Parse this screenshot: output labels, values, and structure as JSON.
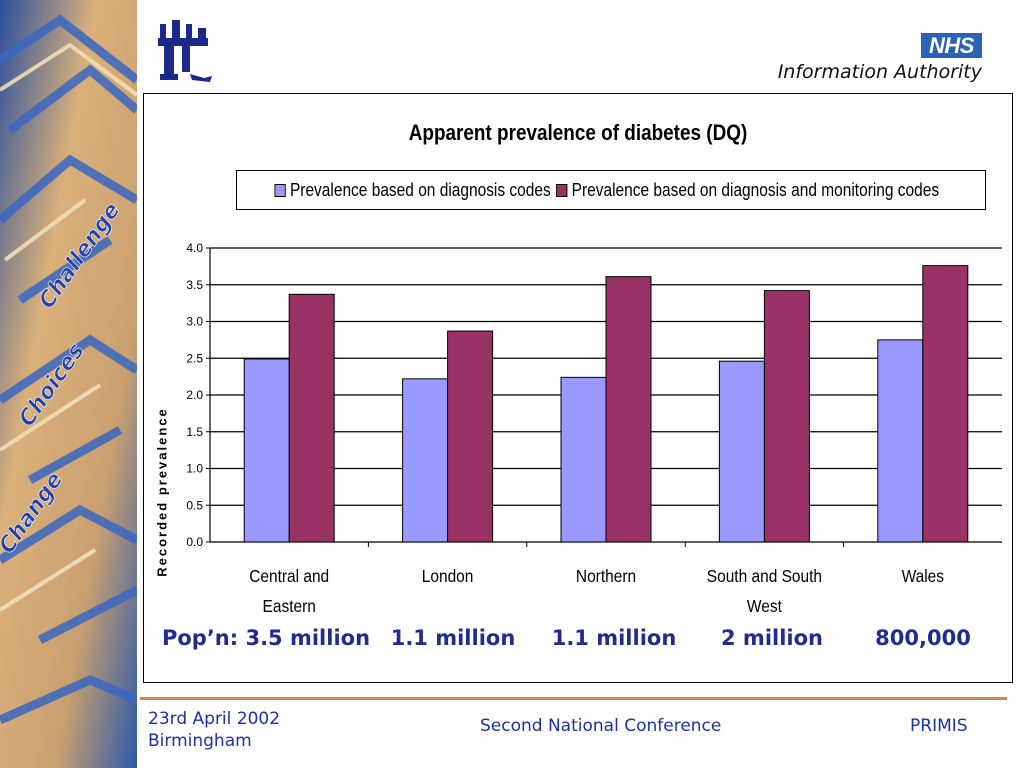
{
  "side_banner": {
    "words": [
      "Challenge",
      "Choices",
      "Change"
    ]
  },
  "header": {
    "nhs_badge": "NHS",
    "org_name": "Information Authority"
  },
  "chart_data": {
    "type": "bar",
    "title": "Apparent prevalence of diabetes (DQ)",
    "ylabel": "Recorded prevalence",
    "xlabel": "",
    "ylim": [
      0,
      4
    ],
    "yticks": [
      "0.0",
      "0.5",
      "1.0",
      "1.5",
      "2.0",
      "2.5",
      "3.0",
      "3.5",
      "4.0"
    ],
    "grid": true,
    "legend_position": "top",
    "categories": [
      [
        "Central and",
        "Eastern"
      ],
      [
        "London"
      ],
      [
        "Northern"
      ],
      [
        "South and South",
        "West"
      ],
      [
        "Wales"
      ]
    ],
    "series": [
      {
        "name": "Prevalence based on diagnosis codes",
        "color": "#9999ff",
        "values": [
          2.49,
          2.22,
          2.24,
          2.46,
          2.75
        ]
      },
      {
        "name": "Prevalence based on diagnosis and monitoring codes",
        "color": "#993366",
        "values": [
          3.37,
          2.87,
          3.61,
          3.42,
          3.76
        ]
      }
    ]
  },
  "population": [
    "Pop’n: 3.5 million",
    "1.1 million",
    "1.1 million",
    "2 million",
    "800,000"
  ],
  "footer": {
    "date": "23rd April 2002",
    "location": "Birmingham",
    "conference": "Second National Conference",
    "org": "PRIMIS"
  }
}
